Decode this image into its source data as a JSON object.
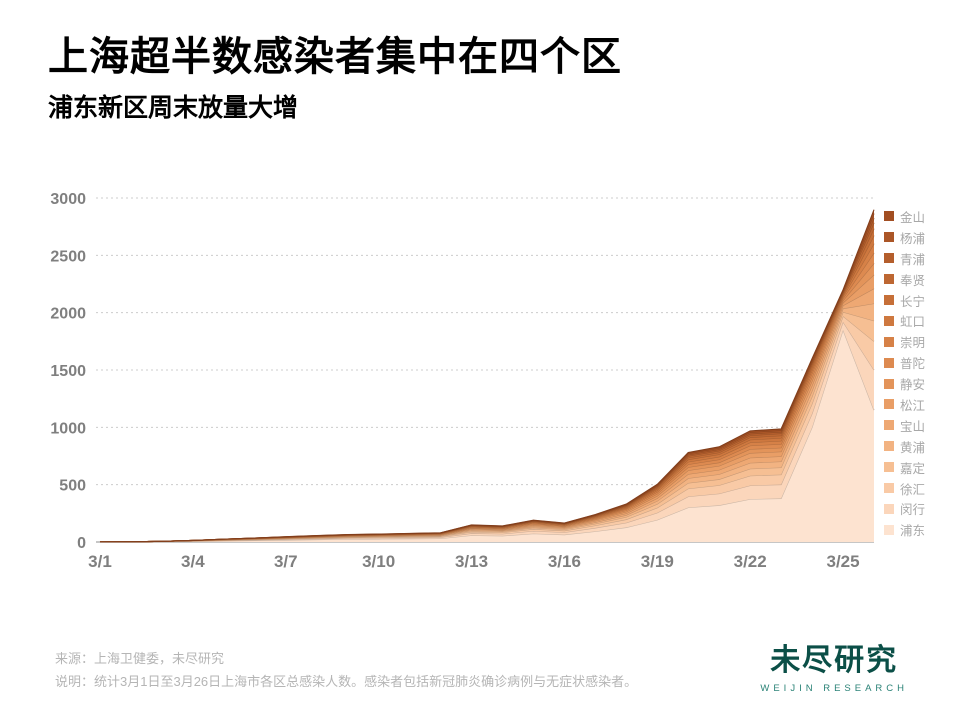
{
  "title": "上海超半数感染者集中在四个区",
  "subtitle": "浦东新区周末放量大增",
  "footer": {
    "source": "来源：上海卫健委，未尽研究",
    "note": "说明：统计3月1日至3月26日上海市各区总感染人数。感染者包括新冠肺炎确诊病例与无症状感染者。"
  },
  "logo": {
    "name": "未尽研究",
    "sub": "WEIJIN RESEARCH",
    "color": "#0b4f47"
  },
  "chart_data": {
    "type": "area",
    "stacked": true,
    "grid": "dotted-horizontal",
    "legend_position": "right",
    "ylim": [
      0,
      3000
    ],
    "y_ticks": [
      0,
      500,
      1000,
      1500,
      2000,
      2500,
      3000
    ],
    "x": [
      "3/1",
      "3/2",
      "3/3",
      "3/4",
      "3/5",
      "3/6",
      "3/7",
      "3/8",
      "3/9",
      "3/10",
      "3/11",
      "3/12",
      "3/13",
      "3/14",
      "3/15",
      "3/16",
      "3/17",
      "3/18",
      "3/19",
      "3/20",
      "3/21",
      "3/22",
      "3/23",
      "3/24",
      "3/25",
      "3/26"
    ],
    "x_tick_labels": [
      "3/1",
      "3/4",
      "3/7",
      "3/10",
      "3/13",
      "3/16",
      "3/19",
      "3/22",
      "3/25"
    ],
    "series_top_to_bottom": [
      {
        "name": "金山",
        "color": "#a24e22",
        "values": [
          0,
          0,
          0,
          0,
          0,
          0,
          1,
          1,
          1,
          1,
          1,
          1,
          2,
          2,
          2,
          2,
          3,
          4,
          6,
          9,
          10,
          12,
          12,
          12,
          7,
          34
        ]
      },
      {
        "name": "杨浦",
        "color": "#ab5627",
        "values": [
          0,
          0,
          0,
          0,
          0,
          0,
          1,
          1,
          1,
          1,
          1,
          1,
          2,
          2,
          3,
          2,
          3,
          5,
          7,
          11,
          12,
          14,
          14,
          14,
          8,
          40
        ]
      },
      {
        "name": "青浦",
        "color": "#b45e2c",
        "values": [
          0,
          0,
          0,
          0,
          0,
          0,
          1,
          1,
          1,
          1,
          1,
          1,
          2,
          2,
          3,
          2,
          3,
          5,
          7,
          11,
          12,
          14,
          14,
          14,
          8,
          40
        ]
      },
      {
        "name": "奉贤",
        "color": "#bd6732",
        "values": [
          0,
          0,
          0,
          0,
          0,
          1,
          1,
          1,
          1,
          1,
          1,
          1,
          3,
          3,
          3,
          3,
          4,
          6,
          9,
          14,
          15,
          17,
          18,
          17,
          10,
          51
        ]
      },
      {
        "name": "长宁",
        "color": "#c66f38",
        "values": [
          0,
          0,
          0,
          0,
          1,
          1,
          1,
          1,
          1,
          1,
          2,
          2,
          3,
          3,
          4,
          3,
          5,
          7,
          11,
          16,
          17,
          20,
          21,
          21,
          12,
          60
        ]
      },
      {
        "name": "虹口",
        "color": "#ce783f",
        "values": [
          0,
          0,
          0,
          0,
          1,
          1,
          1,
          1,
          2,
          2,
          2,
          2,
          4,
          4,
          5,
          4,
          6,
          8,
          13,
          20,
          21,
          24,
          25,
          24,
          14,
          71
        ]
      },
      {
        "name": "崇明",
        "color": "#d68147",
        "values": [
          0,
          0,
          0,
          0,
          1,
          1,
          1,
          2,
          2,
          2,
          2,
          2,
          4,
          4,
          5,
          5,
          7,
          9,
          14,
          22,
          23,
          27,
          28,
          27,
          16,
          80
        ]
      },
      {
        "name": "普陀",
        "color": "#dd8a50",
        "values": [
          0,
          0,
          0,
          0,
          1,
          1,
          1,
          2,
          2,
          2,
          2,
          3,
          5,
          4,
          6,
          5,
          8,
          11,
          16,
          25,
          27,
          31,
          32,
          31,
          18,
          91
        ]
      },
      {
        "name": "静安",
        "color": "#e3945a",
        "values": [
          0,
          0,
          0,
          1,
          1,
          1,
          2,
          2,
          2,
          2,
          3,
          3,
          5,
          5,
          7,
          6,
          8,
          12,
          18,
          27,
          29,
          34,
          34,
          34,
          20,
          100
        ]
      },
      {
        "name": "松江",
        "color": "#e99e66",
        "values": [
          0,
          0,
          0,
          1,
          1,
          1,
          2,
          2,
          3,
          3,
          3,
          3,
          6,
          6,
          8,
          7,
          10,
          14,
          21,
          33,
          35,
          41,
          41,
          41,
          24,
          120
        ]
      },
      {
        "name": "宝山",
        "color": "#eea873",
        "values": [
          0,
          0,
          0,
          1,
          1,
          2,
          2,
          3,
          3,
          3,
          3,
          4,
          7,
          6,
          9,
          8,
          11,
          15,
          23,
          36,
          38,
          45,
          45,
          45,
          26,
          131
        ]
      },
      {
        "name": "黄浦",
        "color": "#f2b382",
        "values": [
          0,
          0,
          0,
          1,
          1,
          2,
          2,
          3,
          3,
          4,
          4,
          4,
          8,
          7,
          10,
          9,
          13,
          17,
          27,
          41,
          44,
          51,
          52,
          51,
          30,
          150
        ]
      },
      {
        "name": "嘉定",
        "color": "#f6bf93",
        "values": [
          0,
          0,
          1,
          1,
          2,
          2,
          3,
          3,
          4,
          4,
          5,
          5,
          9,
          9,
          12,
          10,
          15,
          21,
          32,
          49,
          52,
          61,
          62,
          62,
          36,
          180
        ]
      },
      {
        "name": "徐汇",
        "color": "#f9caa6",
        "values": [
          0,
          0,
          1,
          1,
          2,
          3,
          4,
          5,
          6,
          6,
          7,
          7,
          13,
          12,
          17,
          15,
          21,
          29,
          44,
          69,
          73,
          85,
          87,
          86,
          50,
          250
        ]
      },
      {
        "name": "闵行",
        "color": "#fbd6bb",
        "values": [
          0,
          0,
          1,
          2,
          3,
          4,
          6,
          7,
          8,
          9,
          9,
          10,
          18,
          17,
          23,
          20,
          30,
          41,
          62,
          96,
          102,
          119,
          121,
          120,
          70,
          350
        ]
      },
      {
        "name": "浦东",
        "color": "#fde3d0",
        "values": [
          1,
          2,
          3,
          6,
          10,
          14,
          17,
          21,
          25,
          27,
          29,
          31,
          58,
          54,
          73,
          64,
          93,
          127,
          193,
          301,
          320,
          374,
          380,
          1000,
          1850,
          1150
        ]
      }
    ]
  }
}
